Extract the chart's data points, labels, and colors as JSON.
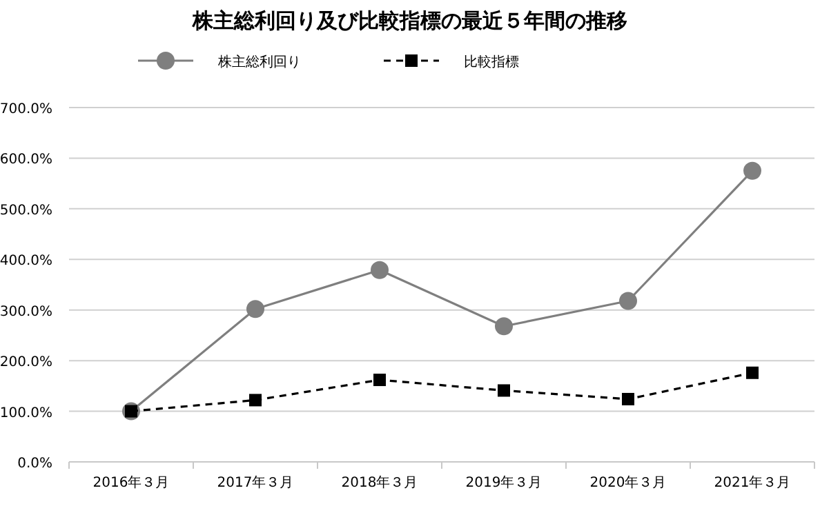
{
  "chart_data": {
    "type": "line",
    "title": "株主総利回り及び比較指標の最近５年間の推移",
    "categories": [
      "2016年３月",
      "2017年３月",
      "2018年３月",
      "2019年３月",
      "2020年３月",
      "2021年３月"
    ],
    "series": [
      {
        "name": "株主総利回り",
        "color": "#7f7f7f",
        "marker": "circle",
        "line_style": "solid",
        "values": [
          100,
          302,
          379,
          268,
          318,
          575
        ]
      },
      {
        "name": "比較指標",
        "color": "#000000",
        "marker": "square",
        "line_style": "dashed",
        "values": [
          100,
          122,
          162,
          141,
          124,
          176
        ]
      }
    ],
    "ylim": [
      0,
      700
    ],
    "yticks": [
      {
        "value": 0,
        "label": "0.0%"
      },
      {
        "value": 100,
        "label": "100.0%"
      },
      {
        "value": 200,
        "label": "200.0%"
      },
      {
        "value": 300,
        "label": "300.0%"
      },
      {
        "value": 400,
        "label": "400.0%"
      },
      {
        "value": 500,
        "label": "500.0%"
      },
      {
        "value": 600,
        "label": "600.0%"
      },
      {
        "value": 700,
        "label": "700.0%"
      }
    ],
    "grid": "y",
    "legend": "top"
  }
}
